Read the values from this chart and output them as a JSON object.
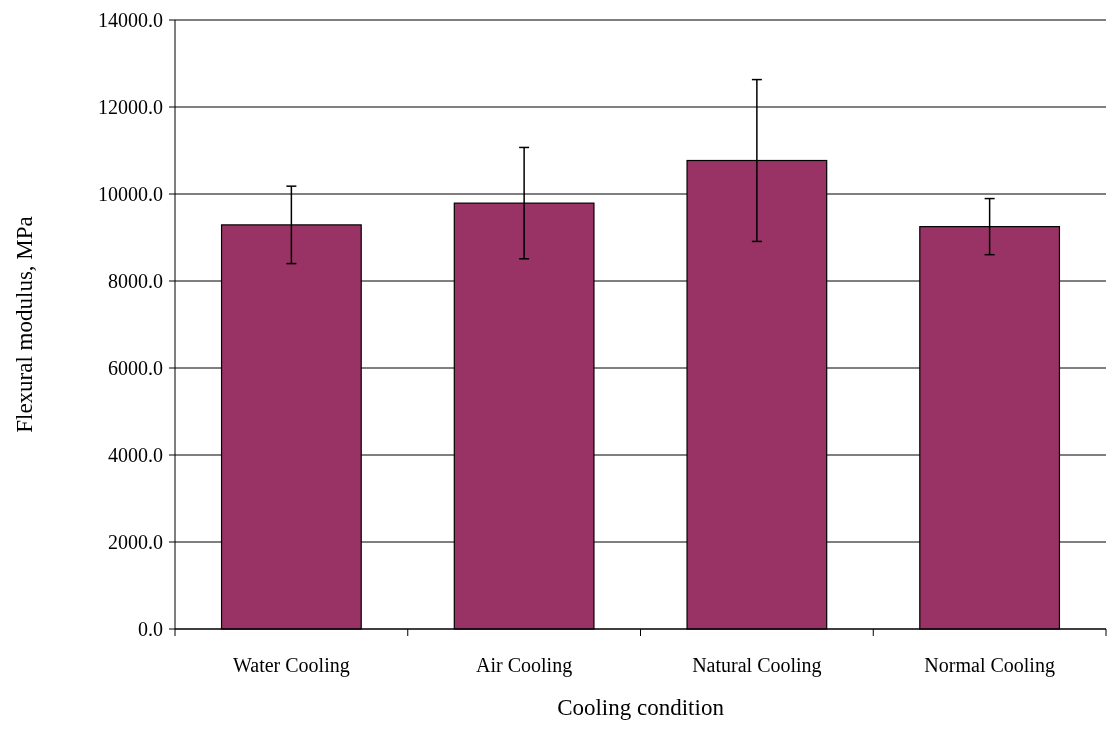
{
  "chart_data": {
    "type": "bar",
    "xlabel": "Cooling condition",
    "ylabel": "Flexural modulus, MPa",
    "categories": [
      "Water Cooling",
      "Air Cooling",
      "Natural Cooling",
      "Normal Cooling"
    ],
    "values": [
      9290,
      9790,
      10770,
      9250
    ],
    "errors": [
      890,
      1280,
      1860,
      645
    ],
    "color": "#993366",
    "ylim": [
      0,
      14000
    ],
    "yticks": [
      {
        "value": 0,
        "label": "0.0"
      },
      {
        "value": 2000,
        "label": "2000.0"
      },
      {
        "value": 4000,
        "label": "4000.0"
      },
      {
        "value": 6000,
        "label": "6000.0"
      },
      {
        "value": 8000,
        "label": "8000.0"
      },
      {
        "value": 10000,
        "label": "10000.0"
      },
      {
        "value": 12000,
        "label": "12000.0"
      },
      {
        "value": 14000,
        "label": "14000.0"
      }
    ],
    "grid": "y"
  }
}
